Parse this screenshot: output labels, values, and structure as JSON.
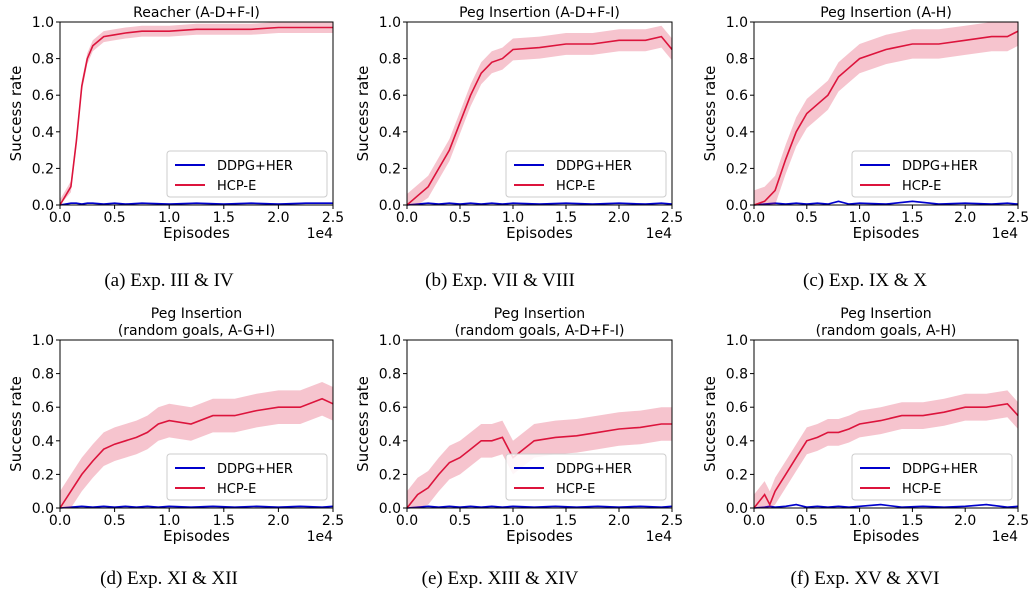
{
  "chart_data": [
    {
      "type": "line",
      "title": "Reacher (A-D+F-I)",
      "caption": "(a) Exp. III & IV",
      "xlabel": "Episodes",
      "ylabel": "Success rate",
      "x_offset": "1e4",
      "xlim": [
        0,
        2.5
      ],
      "ylim": [
        0,
        1.0
      ],
      "xticks": [
        "0.0",
        "0.5",
        "1.0",
        "1.5",
        "2.0",
        "2.5"
      ],
      "yticks": [
        "0.0",
        "0.2",
        "0.4",
        "0.6",
        "0.8",
        "1.0"
      ],
      "legend_position": "lower-right",
      "x": [
        0.0,
        0.1,
        0.15,
        0.2,
        0.25,
        0.3,
        0.4,
        0.5,
        0.6,
        0.75,
        1.0,
        1.25,
        1.5,
        1.75,
        2.0,
        2.25,
        2.5
      ],
      "series": [
        {
          "name": "DDPG+HER",
          "color": "#0000cc",
          "values": [
            0,
            0.01,
            0.01,
            0.005,
            0.01,
            0.01,
            0.005,
            0.01,
            0.005,
            0.01,
            0.005,
            0.01,
            0.005,
            0.01,
            0.005,
            0.01,
            0.01
          ],
          "band": 0.005
        },
        {
          "name": "HCP-E",
          "color": "#dc143c",
          "values": [
            0,
            0.1,
            0.35,
            0.65,
            0.8,
            0.87,
            0.92,
            0.93,
            0.94,
            0.95,
            0.95,
            0.96,
            0.96,
            0.96,
            0.97,
            0.97,
            0.97
          ],
          "band": 0.03
        }
      ]
    },
    {
      "type": "line",
      "title": "Peg Insertion (A-D+F-I)",
      "caption": "(b) Exp. VII & VIII",
      "xlabel": "Episodes",
      "ylabel": "Success rate",
      "x_offset": "1e4",
      "xlim": [
        0,
        2.5
      ],
      "ylim": [
        0,
        1.0
      ],
      "xticks": [
        "0.0",
        "0.5",
        "1.0",
        "1.5",
        "2.0",
        "2.5"
      ],
      "yticks": [
        "0.0",
        "0.2",
        "0.4",
        "0.6",
        "0.8",
        "1.0"
      ],
      "legend_position": "lower-right",
      "x": [
        0.0,
        0.1,
        0.2,
        0.3,
        0.4,
        0.5,
        0.6,
        0.7,
        0.8,
        0.9,
        1.0,
        1.25,
        1.5,
        1.75,
        2.0,
        2.25,
        2.4,
        2.5
      ],
      "series": [
        {
          "name": "DDPG+HER",
          "color": "#0000cc",
          "values": [
            0,
            0.005,
            0.01,
            0.005,
            0.01,
            0.005,
            0.01,
            0.005,
            0.01,
            0.005,
            0.01,
            0.005,
            0.01,
            0.005,
            0.01,
            0.005,
            0.01,
            0.005
          ],
          "band": 0.005
        },
        {
          "name": "HCP-E",
          "color": "#dc143c",
          "values": [
            0,
            0.05,
            0.1,
            0.2,
            0.3,
            0.45,
            0.6,
            0.72,
            0.78,
            0.8,
            0.85,
            0.86,
            0.88,
            0.88,
            0.9,
            0.9,
            0.92,
            0.85
          ],
          "band": 0.06
        }
      ]
    },
    {
      "type": "line",
      "title": "Peg Insertion (A-H)",
      "caption": "(c) Exp. IX & X",
      "xlabel": "Episodes",
      "ylabel": "Success rate",
      "x_offset": "1e4",
      "xlim": [
        0,
        2.5
      ],
      "ylim": [
        0,
        1.0
      ],
      "xticks": [
        "0.0",
        "0.5",
        "1.0",
        "1.5",
        "2.0",
        "2.5"
      ],
      "yticks": [
        "0.0",
        "0.2",
        "0.4",
        "0.6",
        "0.8",
        "1.0"
      ],
      "legend_position": "lower-right",
      "x": [
        0.0,
        0.1,
        0.2,
        0.3,
        0.4,
        0.5,
        0.6,
        0.7,
        0.8,
        0.9,
        1.0,
        1.25,
        1.5,
        1.75,
        2.0,
        2.25,
        2.4,
        2.5
      ],
      "series": [
        {
          "name": "DDPG+HER",
          "color": "#0000cc",
          "values": [
            0,
            0.005,
            0.01,
            0.005,
            0.01,
            0.005,
            0.01,
            0.005,
            0.02,
            0.005,
            0.01,
            0.005,
            0.02,
            0.005,
            0.01,
            0.005,
            0.01,
            0.005
          ],
          "band": 0.005
        },
        {
          "name": "HCP-E",
          "color": "#dc143c",
          "values": [
            0,
            0.02,
            0.08,
            0.25,
            0.4,
            0.5,
            0.55,
            0.6,
            0.7,
            0.75,
            0.8,
            0.85,
            0.88,
            0.88,
            0.9,
            0.92,
            0.92,
            0.95
          ],
          "band": 0.08
        }
      ]
    },
    {
      "type": "line",
      "title": "Peg Insertion\n(random goals, A-G+I)",
      "caption": "(d) Exp. XI & XII",
      "xlabel": "Episodes",
      "ylabel": "Success rate",
      "x_offset": "1e4",
      "xlim": [
        0,
        2.5
      ],
      "ylim": [
        0,
        1.0
      ],
      "xticks": [
        "0.0",
        "0.5",
        "1.0",
        "1.5",
        "2.0",
        "2.5"
      ],
      "yticks": [
        "0.0",
        "0.2",
        "0.4",
        "0.6",
        "0.8",
        "1.0"
      ],
      "legend_position": "lower-right",
      "x": [
        0.0,
        0.1,
        0.2,
        0.3,
        0.4,
        0.5,
        0.6,
        0.7,
        0.8,
        0.9,
        1.0,
        1.2,
        1.4,
        1.6,
        1.8,
        2.0,
        2.2,
        2.4,
        2.5
      ],
      "series": [
        {
          "name": "DDPG+HER",
          "color": "#0000cc",
          "values": [
            0,
            0.005,
            0.01,
            0.005,
            0.01,
            0.005,
            0.01,
            0.005,
            0.01,
            0.005,
            0.01,
            0.005,
            0.01,
            0.005,
            0.01,
            0.005,
            0.01,
            0.005,
            0.01
          ],
          "band": 0.005
        },
        {
          "name": "HCP-E",
          "color": "#dc143c",
          "values": [
            0,
            0.1,
            0.2,
            0.28,
            0.35,
            0.38,
            0.4,
            0.42,
            0.45,
            0.5,
            0.52,
            0.5,
            0.55,
            0.55,
            0.58,
            0.6,
            0.6,
            0.65,
            0.62
          ],
          "band": 0.1
        }
      ]
    },
    {
      "type": "line",
      "title": "Peg Insertion\n(random goals, A-D+F-I)",
      "caption": "(e) Exp. XIII & XIV",
      "xlabel": "Episodes",
      "ylabel": "Success rate",
      "x_offset": "1e4",
      "xlim": [
        0,
        2.5
      ],
      "ylim": [
        0,
        1.0
      ],
      "xticks": [
        "0.0",
        "0.5",
        "1.0",
        "1.5",
        "2.0",
        "2.5"
      ],
      "yticks": [
        "0.0",
        "0.2",
        "0.4",
        "0.6",
        "0.8",
        "1.0"
      ],
      "legend_position": "lower-right",
      "x": [
        0.0,
        0.1,
        0.2,
        0.3,
        0.4,
        0.5,
        0.6,
        0.7,
        0.8,
        0.9,
        1.0,
        1.2,
        1.4,
        1.6,
        1.8,
        2.0,
        2.2,
        2.4,
        2.5
      ],
      "series": [
        {
          "name": "DDPG+HER",
          "color": "#0000cc",
          "values": [
            0,
            0.005,
            0.01,
            0.005,
            0.01,
            0.005,
            0.01,
            0.005,
            0.01,
            0.005,
            0.01,
            0.005,
            0.01,
            0.005,
            0.01,
            0.005,
            0.01,
            0.005,
            0.01
          ],
          "band": 0.005
        },
        {
          "name": "HCP-E",
          "color": "#dc143c",
          "values": [
            0,
            0.08,
            0.12,
            0.2,
            0.27,
            0.3,
            0.35,
            0.4,
            0.4,
            0.42,
            0.3,
            0.4,
            0.42,
            0.43,
            0.45,
            0.47,
            0.48,
            0.5,
            0.5
          ],
          "band": 0.1
        }
      ]
    },
    {
      "type": "line",
      "title": "Peg Insertion\n(random goals, A-H)",
      "caption": "(f) Exp. XV & XVI",
      "xlabel": "Episodes",
      "ylabel": "Success rate",
      "x_offset": "1e4",
      "xlim": [
        0,
        2.5
      ],
      "ylim": [
        0,
        1.0
      ],
      "xticks": [
        "0.0",
        "0.5",
        "1.0",
        "1.5",
        "2.0",
        "2.5"
      ],
      "yticks": [
        "0.0",
        "0.2",
        "0.4",
        "0.6",
        "0.8",
        "1.0"
      ],
      "legend_position": "lower-right",
      "x": [
        0.0,
        0.1,
        0.15,
        0.2,
        0.3,
        0.4,
        0.5,
        0.6,
        0.7,
        0.8,
        0.9,
        1.0,
        1.2,
        1.4,
        1.6,
        1.8,
        2.0,
        2.2,
        2.4,
        2.5
      ],
      "series": [
        {
          "name": "DDPG+HER",
          "color": "#0000cc",
          "values": [
            0,
            0.005,
            0.01,
            0.005,
            0.01,
            0.02,
            0.005,
            0.01,
            0.005,
            0.01,
            0.005,
            0.01,
            0.02,
            0.005,
            0.01,
            0.005,
            0.01,
            0.02,
            0.005,
            0.01
          ],
          "band": 0.005
        },
        {
          "name": "HCP-E",
          "color": "#dc143c",
          "values": [
            0,
            0.08,
            0.02,
            0.1,
            0.2,
            0.3,
            0.4,
            0.42,
            0.45,
            0.45,
            0.47,
            0.5,
            0.52,
            0.55,
            0.55,
            0.57,
            0.6,
            0.6,
            0.62,
            0.55
          ],
          "band": 0.08
        }
      ]
    }
  ]
}
